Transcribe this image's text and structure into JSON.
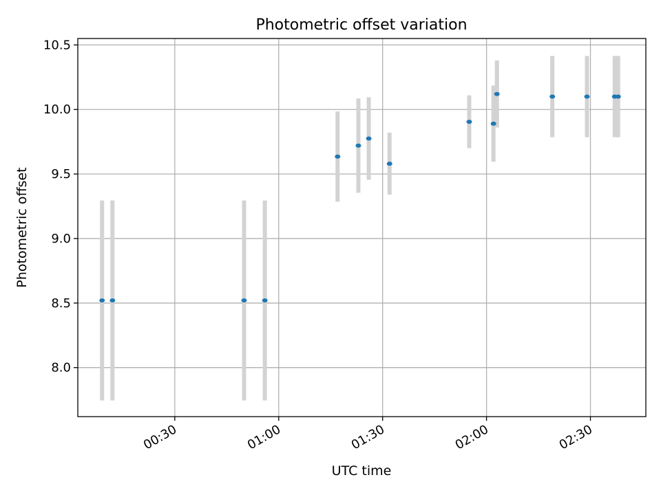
{
  "chart_data": {
    "type": "scatter",
    "title": "Photometric offset variation",
    "xlabel": "UTC time",
    "ylabel": "Photometric offset",
    "x_tick_labels": [
      "00:30",
      "01:00",
      "01:30",
      "02:00",
      "02:30"
    ],
    "y_tick_labels": [
      "8.0",
      "8.5",
      "9.0",
      "9.5",
      "10.0",
      "10.5"
    ],
    "x_ticks": [
      "00:30",
      "01:00",
      "01:30",
      "02:00",
      "02:30"
    ],
    "y_ticks": [
      8.0,
      8.5,
      9.0,
      9.5,
      10.0,
      10.5
    ],
    "xlim": [
      "00:02",
      "02:46"
    ],
    "ylim": [
      7.62,
      10.55
    ],
    "grid": true,
    "marker_color": "#1f77b4",
    "errorbar_color": "#d3d3d3",
    "points": [
      {
        "x": "00:09",
        "y": 8.52,
        "yerr": 0.775
      },
      {
        "x": "00:12",
        "y": 8.52,
        "yerr": 0.775
      },
      {
        "x": "00:50",
        "y": 8.52,
        "yerr": 0.775
      },
      {
        "x": "00:56",
        "y": 8.52,
        "yerr": 0.775
      },
      {
        "x": "01:17",
        "y": 9.635,
        "yerr": 0.35
      },
      {
        "x": "01:23",
        "y": 9.72,
        "yerr": 0.365
      },
      {
        "x": "01:26",
        "y": 9.775,
        "yerr": 0.32
      },
      {
        "x": "01:32",
        "y": 9.58,
        "yerr": 0.24
      },
      {
        "x": "01:55",
        "y": 9.905,
        "yerr": 0.205
      },
      {
        "x": "02:02",
        "y": 9.89,
        "yerr": 0.295
      },
      {
        "x": "02:03",
        "y": 10.12,
        "yerr": 0.26
      },
      {
        "x": "02:19",
        "y": 10.1,
        "yerr": 0.315
      },
      {
        "x": "02:29",
        "y": 10.1,
        "yerr": 0.315
      },
      {
        "x": "02:37",
        "y": 10.1,
        "yerr": 0.315
      },
      {
        "x": "02:38",
        "y": 10.1,
        "yerr": 0.315
      }
    ]
  }
}
